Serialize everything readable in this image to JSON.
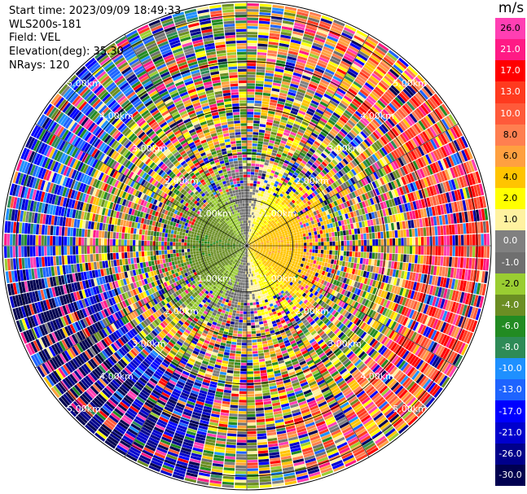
{
  "chart_data": {
    "type": "heatmap",
    "subtype": "radar-ppi",
    "info": {
      "start_time": "Start time: 2023/09/09 18:49:33",
      "instrument": "WLS200s-181",
      "field": "Field: VEL",
      "elevation": "Elevation(deg): 35.30",
      "nrays": "NRays: 120"
    },
    "range_rings_km": [
      1,
      2,
      3,
      4,
      5
    ],
    "ring_labels": [
      "1.00km",
      "2.00km",
      "3.00km",
      "4.00km",
      "5.00km"
    ],
    "max_range_km": 5.3,
    "n_rays": 120,
    "colorbar": {
      "unit": "m/s",
      "min": -30.0,
      "max": 30.0,
      "tick_labels": [
        "26.0",
        "21.0",
        "17.0",
        "13.0",
        "10.0",
        "8.0",
        "6.0",
        "4.0",
        "2.0",
        "1.0",
        "0.0",
        "-1.0",
        "-2.0",
        "-4.0",
        "-6.0",
        "-8.0",
        "-10.0",
        "-13.0",
        "-17.0",
        "-21.0",
        "-26.0",
        "-30.0"
      ],
      "colors": [
        "#ff3fb3",
        "#ff1a85",
        "#ff0000",
        "#ff3a1f",
        "#ff5a3a",
        "#ff7f50",
        "#ffa040",
        "#ffc400",
        "#ffff00",
        "#fff2a0",
        "#808080",
        "#6f6f6f",
        "#9acd32",
        "#6b8e23",
        "#228b22",
        "#2e8b57",
        "#1e90ff",
        "#1e64ff",
        "#0000ff",
        "#0000cd",
        "#00008b",
        "#000050"
      ]
    },
    "description_of_field": "Near range (< ~1.7 km): negative (green) velocities on the west side, positive (yellow/orange) on the east side, grey near zero along north-south; beyond ~1.7 km the field is dominated by noisy multicolored values, with strongly negative (blue) values toward the south-west edge and positive (orange/red) values toward the east edge."
  }
}
